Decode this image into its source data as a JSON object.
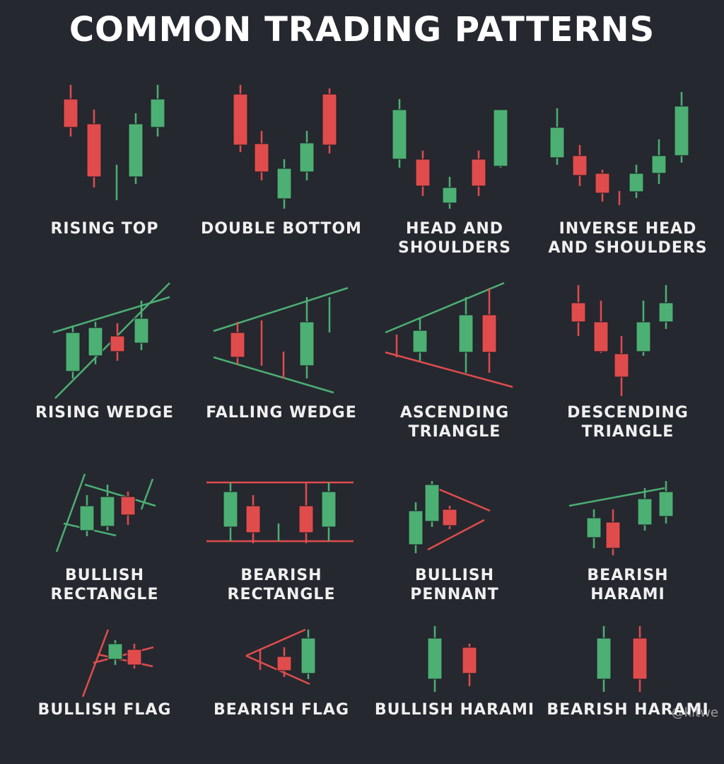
{
  "title": "COMMON TRADING PATTERNS",
  "watermark": "@kitwe",
  "colors": {
    "background": "#262830",
    "bullish": "#4caf73",
    "bearish": "#e04c4c",
    "line_green": "#4caf73",
    "line_red": "#e04c4c"
  },
  "patterns": [
    {
      "name": "rising-top",
      "label": [
        "RISING TOP"
      ]
    },
    {
      "name": "double-bottom",
      "label": [
        "DOUBLE BOTTOM"
      ]
    },
    {
      "name": "head-and-shoulders",
      "label": [
        "HEAD AND",
        "SHOULDERS"
      ]
    },
    {
      "name": "inverse-head-and-shoulders",
      "label": [
        "INVERSE HEAD",
        "AND SHOULDERS"
      ]
    },
    {
      "name": "rising-wedge",
      "label": [
        "RISING WEDGE"
      ]
    },
    {
      "name": "falling-wedge",
      "label": [
        "FALLING WEDGE"
      ]
    },
    {
      "name": "ascending-triangle",
      "label": [
        "ASCENDING",
        "TRIANGLE"
      ]
    },
    {
      "name": "descending-triangle",
      "label": [
        "DESCENDING",
        "TRIANGLE"
      ]
    },
    {
      "name": "bullish-rectangle",
      "label": [
        "BULLISH",
        "RECTANGLE"
      ]
    },
    {
      "name": "bearish-rectangle",
      "label": [
        "BEARISH",
        "RECTANGLE"
      ]
    },
    {
      "name": "bullish-pennant",
      "label": [
        "BULLISH",
        "PENNANT"
      ]
    },
    {
      "name": "bearish-harami-top",
      "label": [
        "BEARISH",
        "HARAMI"
      ]
    },
    {
      "name": "bullish-flag",
      "label": [
        "BULLISH FLAG"
      ]
    },
    {
      "name": "bearish-flag",
      "label": [
        "BEARISH FLAG"
      ]
    },
    {
      "name": "bullish-harami",
      "label": [
        "BULLISH HARAMI"
      ]
    },
    {
      "name": "bearish-harami",
      "label": [
        "BEARISH HARAMI"
      ]
    }
  ]
}
